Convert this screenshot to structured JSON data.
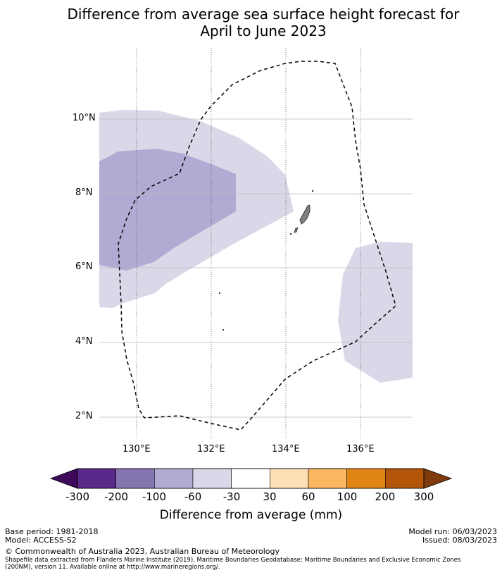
{
  "title_line1": "Difference from average sea surface height forecast for",
  "title_line2": "April to June 2023",
  "map": {
    "lat_labels": [
      "10°N",
      "8°N",
      "6°N",
      "4°N",
      "2°N"
    ],
    "lon_labels": [
      "130°E",
      "132°E",
      "134°E",
      "136°E"
    ],
    "boundary_style": "dashed",
    "anomaly_regions": [
      {
        "category": "-60 to -30",
        "color": "#d8d8e9"
      },
      {
        "category": "-100 to -60",
        "color": "#b1aad2"
      }
    ]
  },
  "colorbar": {
    "label": "Difference from average (mm)",
    "ticks": [
      "-300",
      "-200",
      "-100",
      "-60",
      "-30",
      "30",
      "60",
      "100",
      "200",
      "300"
    ],
    "colors": [
      "#5a2a8a",
      "#8576b0",
      "#b1aad2",
      "#d8d8e9",
      "#ffffff",
      "#fde0b6",
      "#fbb660",
      "#e08416",
      "#b25509"
    ],
    "extend_low_color": "#3f0a5c",
    "extend_high_color": "#7f3b0b"
  },
  "footer": {
    "base_period": "Base period: 1981-2018",
    "model": "Model: ACCESS-S2",
    "model_run": "Model run: 06/03/2023",
    "issued": "Issued: 08/03/2023",
    "copyright": "© Commonwealth of Australia 2023, Australian Bureau of Meteorology",
    "shapefile_line1": "Shapefile data extracted from Flanders Marine Institute (2019), Maritime Boundaries Geodatabase: Maritime Boundaries and Exclusive Economic Zones",
    "shapefile_line2": "(200NM), version 11. Available online at http://www.marineregions.org/."
  }
}
